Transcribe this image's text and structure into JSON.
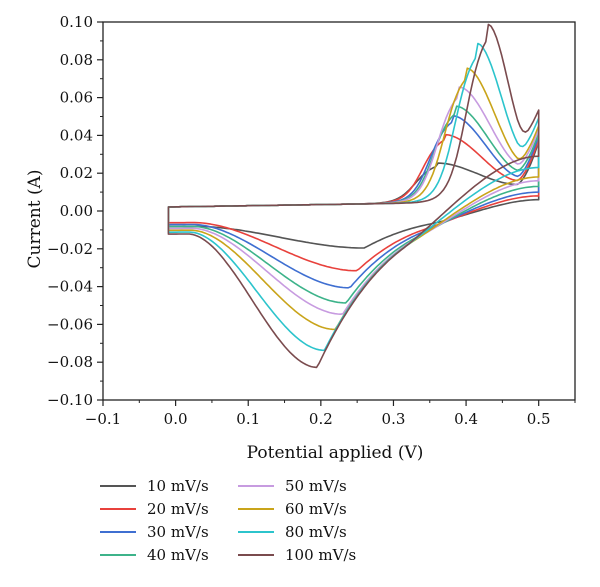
{
  "chart_data": {
    "type": "line",
    "title": "",
    "xlabel": "Potential applied (V)",
    "ylabel": "Current (A)",
    "xlim": [
      -0.1,
      0.55
    ],
    "ylim": [
      -0.1,
      0.1
    ],
    "xticks": [
      -0.1,
      0.0,
      0.1,
      0.2,
      0.3,
      0.4,
      0.5
    ],
    "xtick_labels": [
      "−0.1",
      "0.0",
      "0.1",
      "0.2",
      "0.3",
      "0.4",
      "0.5"
    ],
    "yticks": [
      -0.1,
      -0.08,
      -0.06,
      -0.04,
      -0.02,
      0.0,
      0.02,
      0.04,
      0.06,
      0.08,
      0.1
    ],
    "ytick_labels": [
      "−0.10",
      "−0.08",
      "−0.06",
      "−0.04",
      "−0.02",
      "0.00",
      "0.02",
      "0.04",
      "0.06",
      "0.08",
      "0.10"
    ],
    "grid": false,
    "legend_position": "bottom, two columns",
    "series": [
      {
        "name": "10 mV/s",
        "color": "#555555",
        "ox_peak": [
          0.36,
          0.021
        ],
        "red_peak": [
          0.26,
          -0.016
        ],
        "end_current": 0.034,
        "end_current_rev": 0.009,
        "start_current": -0.004
      },
      {
        "name": "20 mV/s",
        "color": "#e8413c",
        "ox_peak": [
          0.37,
          0.036
        ],
        "red_peak": [
          0.25,
          -0.028
        ],
        "end_current": 0.035,
        "end_current_rev": 0.011,
        "start_current": -0.002
      },
      {
        "name": "30 mV/s",
        "color": "#3f6fd1",
        "ox_peak": [
          0.38,
          0.046
        ],
        "red_peak": [
          0.24,
          -0.037
        ],
        "end_current": 0.037,
        "end_current_rev": 0.013,
        "start_current": -0.003
      },
      {
        "name": "40 mV/s",
        "color": "#3db38a",
        "ox_peak": [
          0.385,
          0.051
        ],
        "red_peak": [
          0.235,
          -0.045
        ],
        "end_current": 0.038,
        "end_current_rev": 0.016,
        "start_current": -0.004
      },
      {
        "name": "50 mV/s",
        "color": "#c79be0",
        "ox_peak": [
          0.39,
          0.061
        ],
        "red_peak": [
          0.23,
          -0.051
        ],
        "end_current": 0.04,
        "end_current_rev": 0.019,
        "start_current": -0.005
      },
      {
        "name": "60 mV/s",
        "color": "#c9a41a",
        "ox_peak": [
          0.4,
          0.071
        ],
        "red_peak": [
          0.22,
          -0.059
        ],
        "end_current": 0.042,
        "end_current_rev": 0.021,
        "start_current": -0.006
      },
      {
        "name": "80 mV/s",
        "color": "#2cc4cc",
        "ox_peak": [
          0.415,
          0.084
        ],
        "red_peak": [
          0.205,
          -0.07
        ],
        "end_current": 0.046,
        "end_current_rev": 0.026,
        "start_current": -0.007
      },
      {
        "name": "100 mV/s",
        "color": "#7a4b4e",
        "ox_peak": [
          0.43,
          0.094
        ],
        "red_peak": [
          0.195,
          -0.079
        ],
        "end_current": 0.05,
        "end_current_rev": 0.032,
        "start_current": -0.008
      }
    ]
  }
}
